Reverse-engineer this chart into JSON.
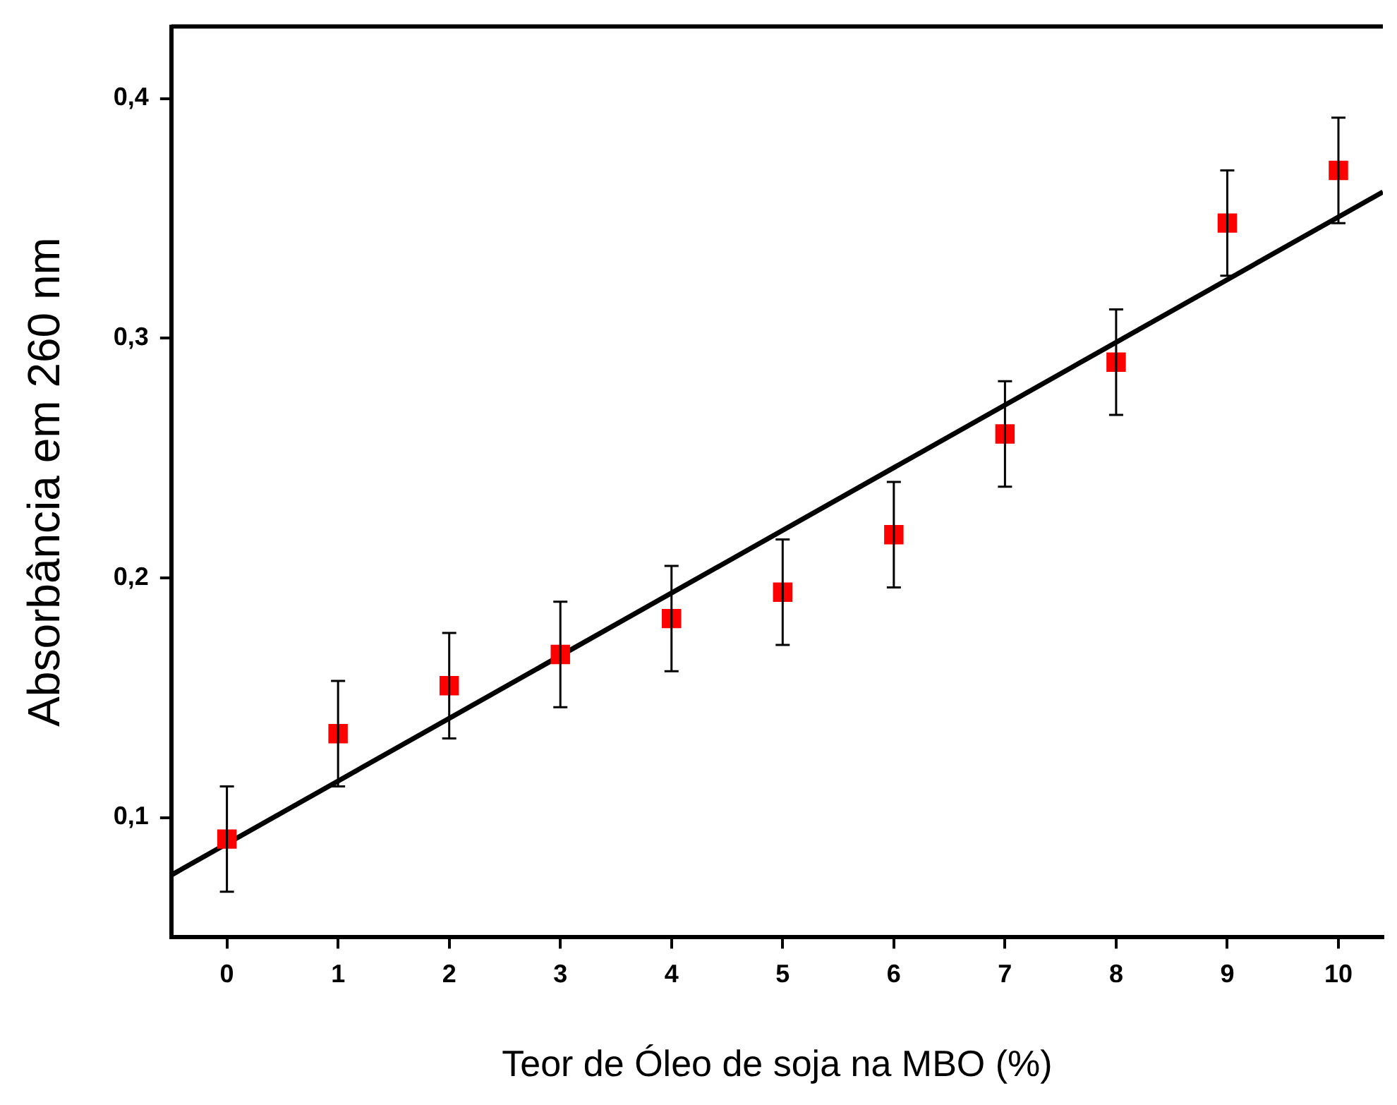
{
  "chart_data": {
    "type": "scatter",
    "xlabel": "Teor de Óleo de soja na MBO (%)",
    "ylabel": "Absorbância em 260 nm",
    "xlim": [
      -0.5,
      10.4
    ],
    "ylim": [
      0.05,
      0.43
    ],
    "xticks": [
      0,
      1,
      2,
      3,
      4,
      5,
      6,
      7,
      8,
      9,
      10
    ],
    "yticks": [
      {
        "value": 0.1,
        "label": "0,1"
      },
      {
        "value": 0.2,
        "label": "0,2"
      },
      {
        "value": 0.3,
        "label": "0,3"
      },
      {
        "value": 0.4,
        "label": "0,4"
      }
    ],
    "grid": false,
    "legend": false,
    "series": [
      {
        "color": "#ff0000",
        "marker": "square",
        "x": [
          0,
          1,
          2,
          3,
          4,
          5,
          6,
          7,
          8,
          9,
          10
        ],
        "values": [
          0.091,
          0.135,
          0.155,
          0.168,
          0.183,
          0.194,
          0.218,
          0.26,
          0.29,
          0.348,
          0.37
        ],
        "errors": [
          0.022,
          0.022,
          0.022,
          0.022,
          0.022,
          0.022,
          0.022,
          0.022,
          0.022,
          0.022,
          0.022
        ]
      },
      {
        "type": "line",
        "color": "#000000",
        "marker": "none",
        "line_style": "solid",
        "x": [
          -0.5,
          10.4
        ],
        "values": [
          0.076,
          0.361
        ]
      }
    ]
  }
}
